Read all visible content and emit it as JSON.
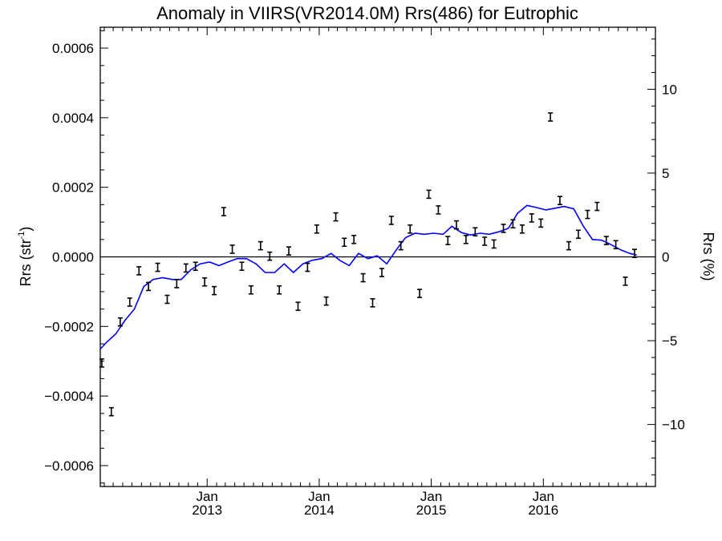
{
  "chart_data": {
    "type": "scatter",
    "title": "Anomaly in VIIRS(VR2014.0M) Rrs(486) for Eutrophic",
    "ylabel_left": {
      "base": "Rrs (str",
      "sup": "-1",
      "tail": ")"
    },
    "ylabel_right": "Rrs (%)",
    "x_ticks": [
      {
        "date": "2013-01-01",
        "line1": "Jan",
        "line2": "2013"
      },
      {
        "date": "2014-01-01",
        "line1": "Jan",
        "line2": "2014"
      },
      {
        "date": "2015-01-01",
        "line1": "Jan",
        "line2": "2015"
      },
      {
        "date": "2016-01-01",
        "line1": "Jan",
        "line2": "2016"
      }
    ],
    "xlim": [
      "2012-01-19",
      "2016-12-31"
    ],
    "ylim_left": [
      -0.00066,
      0.00066
    ],
    "ylim_right": [
      -13.7,
      13.7
    ],
    "y_ticks_left": [
      {
        "value": -0.0006,
        "label": "−0.0006"
      },
      {
        "value": -0.0004,
        "label": "−0.0004"
      },
      {
        "value": -0.0002,
        "label": "−0.0002"
      },
      {
        "value": 0.0,
        "label": "0.0000"
      },
      {
        "value": 0.0002,
        "label": "0.0002"
      },
      {
        "value": 0.0004,
        "label": "0.0004"
      },
      {
        "value": 0.0006,
        "label": "0.0006"
      }
    ],
    "y_ticks_right": [
      {
        "value": -10,
        "label": "−10"
      },
      {
        "value": -5,
        "label": "−5"
      },
      {
        "value": 0,
        "label": "0"
      },
      {
        "value": 5,
        "label": "5"
      },
      {
        "value": 10,
        "label": "10"
      }
    ],
    "zero_line": 0,
    "colors": {
      "line": "#0000ff",
      "points": "#000000",
      "axes": "#000000"
    },
    "series": [
      {
        "kind": "errorbar",
        "points": [
          {
            "x": "2012-01-24",
            "y": -0.000305
          },
          {
            "x": "2012-02-24",
            "y": -0.000445
          },
          {
            "x": "2012-03-24",
            "y": -0.000187
          },
          {
            "x": "2012-04-24",
            "y": -0.00013
          },
          {
            "x": "2012-05-24",
            "y": -4e-05
          },
          {
            "x": "2012-06-24",
            "y": -8.5e-05
          },
          {
            "x": "2012-07-24",
            "y": -3e-05
          },
          {
            "x": "2012-08-24",
            "y": -0.000122
          },
          {
            "x": "2012-09-24",
            "y": -7.7e-05
          },
          {
            "x": "2012-10-24",
            "y": -3.2e-05
          },
          {
            "x": "2012-11-24",
            "y": -2.7e-05
          },
          {
            "x": "2012-12-24",
            "y": -7.2e-05
          },
          {
            "x": "2013-01-24",
            "y": -9.7e-05
          },
          {
            "x": "2013-02-24",
            "y": 0.00013
          },
          {
            "x": "2013-03-24",
            "y": 2.2e-05
          },
          {
            "x": "2013-04-24",
            "y": -2.7e-05
          },
          {
            "x": "2013-05-24",
            "y": -9.5e-05
          },
          {
            "x": "2013-06-24",
            "y": 3.2e-05
          },
          {
            "x": "2013-07-24",
            "y": 2e-06
          },
          {
            "x": "2013-08-24",
            "y": -9.5e-05
          },
          {
            "x": "2013-09-24",
            "y": 1.7e-05
          },
          {
            "x": "2013-10-24",
            "y": -0.000142
          },
          {
            "x": "2013-11-24",
            "y": -3e-05
          },
          {
            "x": "2013-12-24",
            "y": 8e-05
          },
          {
            "x": "2014-01-24",
            "y": -0.000127
          },
          {
            "x": "2014-02-24",
            "y": 0.000115
          },
          {
            "x": "2014-03-24",
            "y": 4.2e-05
          },
          {
            "x": "2014-04-24",
            "y": 5e-05
          },
          {
            "x": "2014-05-24",
            "y": -6e-05
          },
          {
            "x": "2014-06-24",
            "y": -0.000132
          },
          {
            "x": "2014-07-24",
            "y": -4.5e-05
          },
          {
            "x": "2014-08-24",
            "y": 0.000105
          },
          {
            "x": "2014-09-24",
            "y": 3.2e-05
          },
          {
            "x": "2014-10-24",
            "y": 8e-05
          },
          {
            "x": "2014-11-24",
            "y": -0.000105
          },
          {
            "x": "2014-12-24",
            "y": 0.00018
          },
          {
            "x": "2015-01-24",
            "y": 0.000135
          },
          {
            "x": "2015-02-24",
            "y": 4.7e-05
          },
          {
            "x": "2015-03-24",
            "y": 9.2e-05
          },
          {
            "x": "2015-04-24",
            "y": 5e-05
          },
          {
            "x": "2015-05-24",
            "y": 7.2e-05
          },
          {
            "x": "2015-06-24",
            "y": 4.5e-05
          },
          {
            "x": "2015-07-24",
            "y": 3.7e-05
          },
          {
            "x": "2015-08-24",
            "y": 8.2e-05
          },
          {
            "x": "2015-09-24",
            "y": 9.5e-05
          },
          {
            "x": "2015-10-24",
            "y": 8e-05
          },
          {
            "x": "2015-11-24",
            "y": 0.000112
          },
          {
            "x": "2015-12-24",
            "y": 9.7e-05
          },
          {
            "x": "2016-01-24",
            "y": 0.000402
          },
          {
            "x": "2016-02-24",
            "y": 0.000162
          },
          {
            "x": "2016-03-24",
            "y": 3.2e-05
          },
          {
            "x": "2016-04-24",
            "y": 6.5e-05
          },
          {
            "x": "2016-05-24",
            "y": 0.000122
          },
          {
            "x": "2016-06-24",
            "y": 0.000145
          },
          {
            "x": "2016-07-24",
            "y": 4.7e-05
          },
          {
            "x": "2016-08-24",
            "y": 3.5e-05
          },
          {
            "x": "2016-09-24",
            "y": -7e-05
          },
          {
            "x": "2016-10-24",
            "y": 1e-05
          }
        ]
      },
      {
        "kind": "line",
        "points": [
          {
            "x": "2012-01-19",
            "y": -0.000265
          },
          {
            "x": "2012-02-09",
            "y": -0.000245
          },
          {
            "x": "2012-03-09",
            "y": -0.000222
          },
          {
            "x": "2012-04-09",
            "y": -0.000182
          },
          {
            "x": "2012-05-09",
            "y": -0.00015
          },
          {
            "x": "2012-06-09",
            "y": -8.5e-05
          },
          {
            "x": "2012-07-09",
            "y": -6.5e-05
          },
          {
            "x": "2012-08-09",
            "y": -6e-05
          },
          {
            "x": "2012-09-09",
            "y": -6.5e-05
          },
          {
            "x": "2012-10-09",
            "y": -6.5e-05
          },
          {
            "x": "2012-11-09",
            "y": -3.7e-05
          },
          {
            "x": "2012-12-09",
            "y": -2e-05
          },
          {
            "x": "2013-01-09",
            "y": -1.5e-05
          },
          {
            "x": "2013-02-09",
            "y": -2.5e-05
          },
          {
            "x": "2013-03-09",
            "y": -1.5e-05
          },
          {
            "x": "2013-04-09",
            "y": -5e-06
          },
          {
            "x": "2013-05-09",
            "y": -5e-06
          },
          {
            "x": "2013-06-09",
            "y": -2e-05
          },
          {
            "x": "2013-07-09",
            "y": -4.5e-05
          },
          {
            "x": "2013-08-09",
            "y": -4.5e-05
          },
          {
            "x": "2013-09-09",
            "y": -2e-05
          },
          {
            "x": "2013-10-09",
            "y": -4.5e-05
          },
          {
            "x": "2013-11-09",
            "y": -2e-05
          },
          {
            "x": "2013-12-09",
            "y": -1e-05
          },
          {
            "x": "2014-01-09",
            "y": -5e-06
          },
          {
            "x": "2014-02-09",
            "y": 1e-05
          },
          {
            "x": "2014-03-09",
            "y": -1e-05
          },
          {
            "x": "2014-04-09",
            "y": -2.5e-05
          },
          {
            "x": "2014-05-09",
            "y": 1e-05
          },
          {
            "x": "2014-06-09",
            "y": -5e-06
          },
          {
            "x": "2014-07-09",
            "y": 3e-06
          },
          {
            "x": "2014-08-09",
            "y": -2e-05
          },
          {
            "x": "2014-09-09",
            "y": 2e-05
          },
          {
            "x": "2014-10-09",
            "y": 5.5e-05
          },
          {
            "x": "2014-11-09",
            "y": 6.8e-05
          },
          {
            "x": "2014-12-09",
            "y": 6.5e-05
          },
          {
            "x": "2015-01-09",
            "y": 6.8e-05
          },
          {
            "x": "2015-02-09",
            "y": 6.5e-05
          },
          {
            "x": "2015-03-09",
            "y": 8.8e-05
          },
          {
            "x": "2015-04-09",
            "y": 7e-05
          },
          {
            "x": "2015-05-09",
            "y": 6.3e-05
          },
          {
            "x": "2015-06-09",
            "y": 6.8e-05
          },
          {
            "x": "2015-07-09",
            "y": 6.5e-05
          },
          {
            "x": "2015-08-09",
            "y": 7.2e-05
          },
          {
            "x": "2015-09-09",
            "y": 8.2e-05
          },
          {
            "x": "2015-10-09",
            "y": 0.000125
          },
          {
            "x": "2015-11-09",
            "y": 0.000148
          },
          {
            "x": "2015-12-09",
            "y": 0.000142
          },
          {
            "x": "2016-01-09",
            "y": 0.000135
          },
          {
            "x": "2016-02-09",
            "y": 0.00014
          },
          {
            "x": "2016-03-09",
            "y": 0.000145
          },
          {
            "x": "2016-04-09",
            "y": 0.000138
          },
          {
            "x": "2016-05-09",
            "y": 9e-05
          },
          {
            "x": "2016-06-09",
            "y": 5e-05
          },
          {
            "x": "2016-07-09",
            "y": 4.8e-05
          },
          {
            "x": "2016-08-09",
            "y": 3.5e-05
          },
          {
            "x": "2016-09-09",
            "y": 2e-05
          },
          {
            "x": "2016-10-09",
            "y": 1e-05
          },
          {
            "x": "2016-10-31",
            "y": 5e-06
          }
        ]
      }
    ]
  }
}
